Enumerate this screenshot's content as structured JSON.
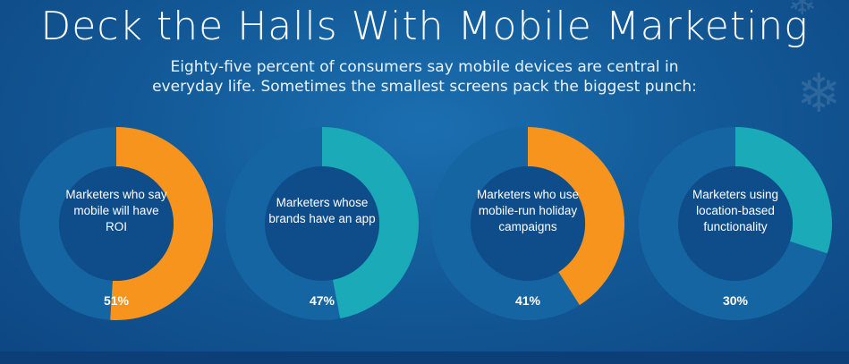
{
  "header": {
    "title": "Deck the Halls With Mobile Marketing",
    "subtitle_line1": "Eighty-five percent of consumers say mobile devices are central in",
    "subtitle_line2": "everyday life. Sometimes the smallest screens pack the biggest punch:"
  },
  "colors": {
    "ring_track": "#1565a3",
    "center": "#0f4c8a",
    "orange": "#f7941e",
    "teal": "#1aaab8"
  },
  "decor": {
    "snowflake_icon": "snowflake-icon"
  },
  "chart_data": {
    "type": "donut",
    "title": "Deck the Halls With Mobile Marketing",
    "items": [
      {
        "label_lines": [
          "Marketers who say",
          "mobile will have",
          "ROI"
        ],
        "value": 51,
        "value_label": "51%",
        "color": "#f7941e"
      },
      {
        "label_lines": [
          "Marketers whose",
          "brands have an app"
        ],
        "value": 47,
        "value_label": "47%",
        "color": "#1aaab8"
      },
      {
        "label_lines": [
          "Marketers who use",
          "mobile-run holiday",
          "campaigns"
        ],
        "value": 41,
        "value_label": "41%",
        "color": "#f7941e"
      },
      {
        "label_lines": [
          "Marketers using",
          "location-based",
          "functionality"
        ],
        "value": 30,
        "value_label": "30%",
        "color": "#1aaab8"
      }
    ]
  }
}
